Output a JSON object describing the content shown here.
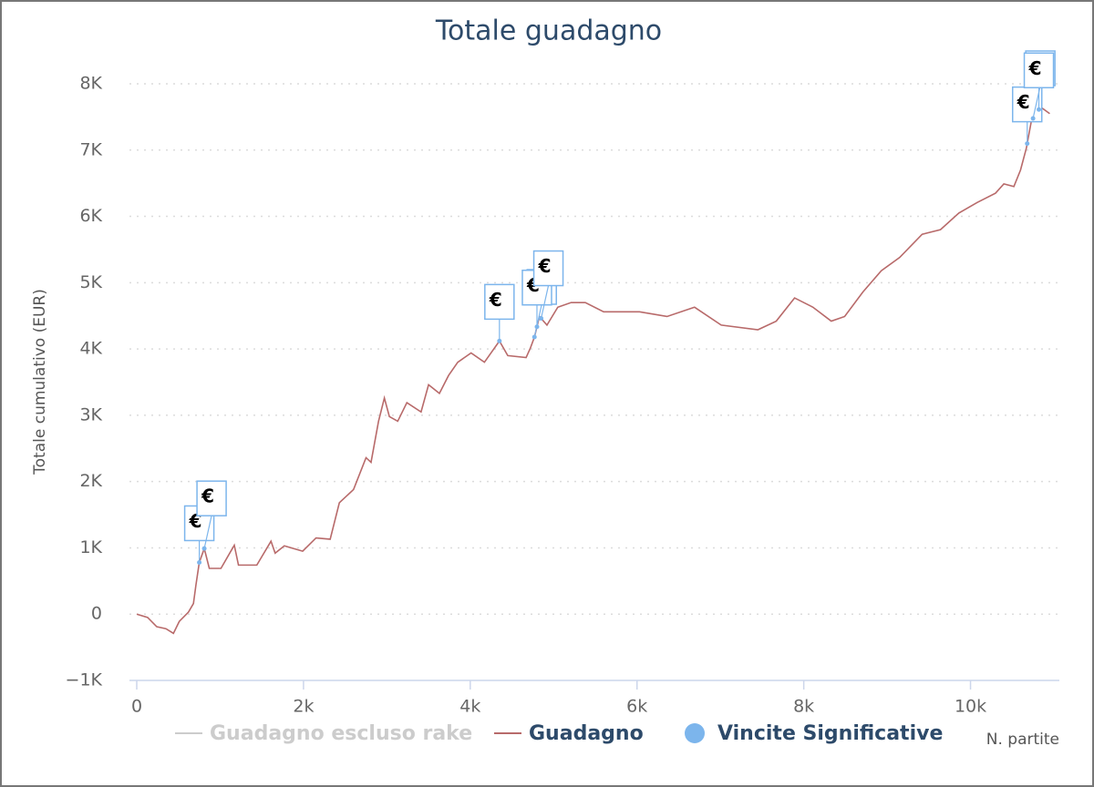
{
  "chart_data": {
    "type": "line",
    "title": "Totale guadagno",
    "x_label": "N. partite",
    "y_label": "Totale cumulativo (EUR)",
    "xlim": [
      0,
      11000
    ],
    "ylim": [
      -1000,
      8000
    ],
    "xticks": [
      0,
      {
        "value": 2000,
        "label": "2k"
      },
      {
        "value": 4000,
        "label": "4k"
      },
      {
        "value": 6000,
        "label": "6k"
      },
      {
        "value": 8000,
        "label": "8k"
      },
      {
        "value": 10000,
        "label": "10k"
      }
    ],
    "yticks": [
      {
        "value": -1000,
        "label": "−1K"
      },
      0,
      {
        "value": 1000,
        "label": "1K"
      },
      {
        "value": 2000,
        "label": "2K"
      },
      {
        "value": 3000,
        "label": "3K"
      },
      {
        "value": 4000,
        "label": "4K"
      },
      {
        "value": 5000,
        "label": "5K"
      },
      {
        "value": 6000,
        "label": "6K"
      },
      {
        "value": 7000,
        "label": "7K"
      },
      {
        "value": 8000,
        "label": "8K"
      }
    ],
    "grid": true,
    "x": [
      0,
      130,
      240,
      350,
      440,
      510,
      620,
      680,
      710,
      750,
      810,
      870,
      1010,
      1170,
      1220,
      1440,
      1610,
      1660,
      1770,
      1990,
      2150,
      2320,
      2430,
      2600,
      2750,
      2810,
      2900,
      2970,
      3030,
      3130,
      3240,
      3410,
      3500,
      3630,
      3740,
      3850,
      4010,
      4170,
      4350,
      4450,
      4670,
      4720,
      4770,
      4830,
      4920,
      5050,
      5210,
      5380,
      5600,
      6030,
      6360,
      6690,
      7010,
      7450,
      7670,
      7890,
      8110,
      8330,
      8490,
      8710,
      8930,
      9150,
      9420,
      9640,
      9860,
      10080,
      10300,
      10400,
      10520,
      10600,
      10670,
      10730,
      10840,
      10950
    ],
    "series": [
      {
        "name": "Guadagno escluso rake",
        "color": "#cccccc",
        "hidden": true
      },
      {
        "name": "Guadagno",
        "color": "#b86a6a",
        "values": [
          0,
          -50,
          -190,
          -220,
          -290,
          -110,
          30,
          160,
          440,
          780,
          990,
          690,
          690,
          1040,
          740,
          740,
          1100,
          920,
          1030,
          950,
          1150,
          1130,
          1680,
          1880,
          2360,
          2290,
          2910,
          3260,
          2980,
          2910,
          3190,
          3050,
          3460,
          3330,
          3600,
          3800,
          3940,
          3800,
          4120,
          3900,
          3870,
          4010,
          4180,
          4490,
          4360,
          4630,
          4700,
          4700,
          4560,
          4560,
          4490,
          4630,
          4360,
          4290,
          4420,
          4770,
          4630,
          4420,
          4490,
          4860,
          5180,
          5380,
          5730,
          5800,
          6050,
          6210,
          6350,
          6490,
          6450,
          6700,
          7030,
          7440,
          7650,
          7550
        ]
      },
      {
        "name": "Vincite Significative",
        "type": "flags",
        "color": "#7cb5ec",
        "title": "€",
        "x": [
          750,
          810,
          4350,
          4770,
          4800,
          4850,
          10680,
          10750,
          10820
        ]
      }
    ]
  }
}
